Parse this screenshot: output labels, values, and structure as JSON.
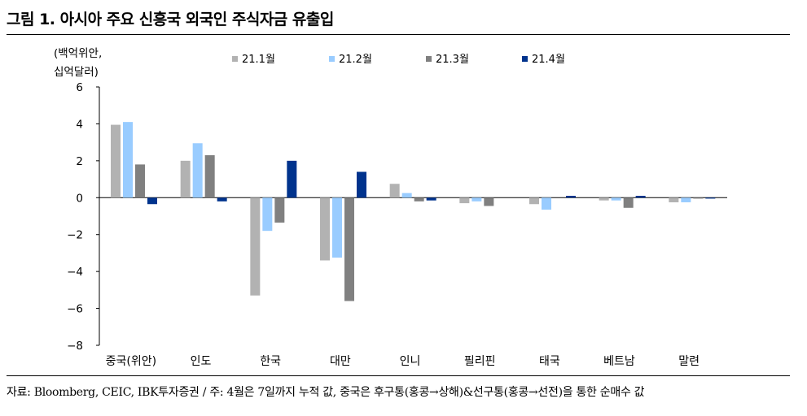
{
  "title": "그림 1. 아시아 주요 신흥국 외국인 주식자금 유출입",
  "source": "자료: Bloomberg, CEIC, IBK투자증권 / 주: 4월은 7일까지 누적 값, 중국은 후구통(홍콩→상해)&선구통(홍콩→선전)을 통한 순매수 값",
  "colors": [
    "#b2b2b2",
    "#99ccff",
    "#808080",
    "#00338d"
  ],
  "chart_data": {
    "type": "bar",
    "title": "그림 1. 아시아 주요 신흥국 외국인 주식자금 유출입",
    "ylabel_lines": [
      "(백억위안,",
      "십억달러)"
    ],
    "xlabel": "",
    "ylim": [
      -8,
      6
    ],
    "yticks": [
      -8,
      -6,
      -4,
      -2,
      0,
      2,
      4,
      6
    ],
    "grid": false,
    "legend_position": "top",
    "categories": [
      "중국(위안)",
      "인도",
      "한국",
      "대만",
      "인니",
      "필리핀",
      "태국",
      "베트남",
      "말련"
    ],
    "series": [
      {
        "name": "21.1월",
        "values": [
          3.95,
          2.0,
          -5.3,
          -3.4,
          0.75,
          -0.3,
          -0.35,
          -0.15,
          -0.25
        ]
      },
      {
        "name": "21.2월",
        "values": [
          4.1,
          2.95,
          -1.8,
          -3.25,
          0.25,
          -0.2,
          -0.65,
          -0.15,
          -0.25
        ]
      },
      {
        "name": "21.3월",
        "values": [
          1.8,
          2.3,
          -1.35,
          -5.6,
          -0.2,
          -0.45,
          0.0,
          -0.55,
          -0.05
        ]
      },
      {
        "name": "21.4월",
        "values": [
          -0.35,
          -0.2,
          2.0,
          1.4,
          -0.15,
          0.0,
          0.1,
          0.1,
          -0.05
        ]
      }
    ]
  }
}
